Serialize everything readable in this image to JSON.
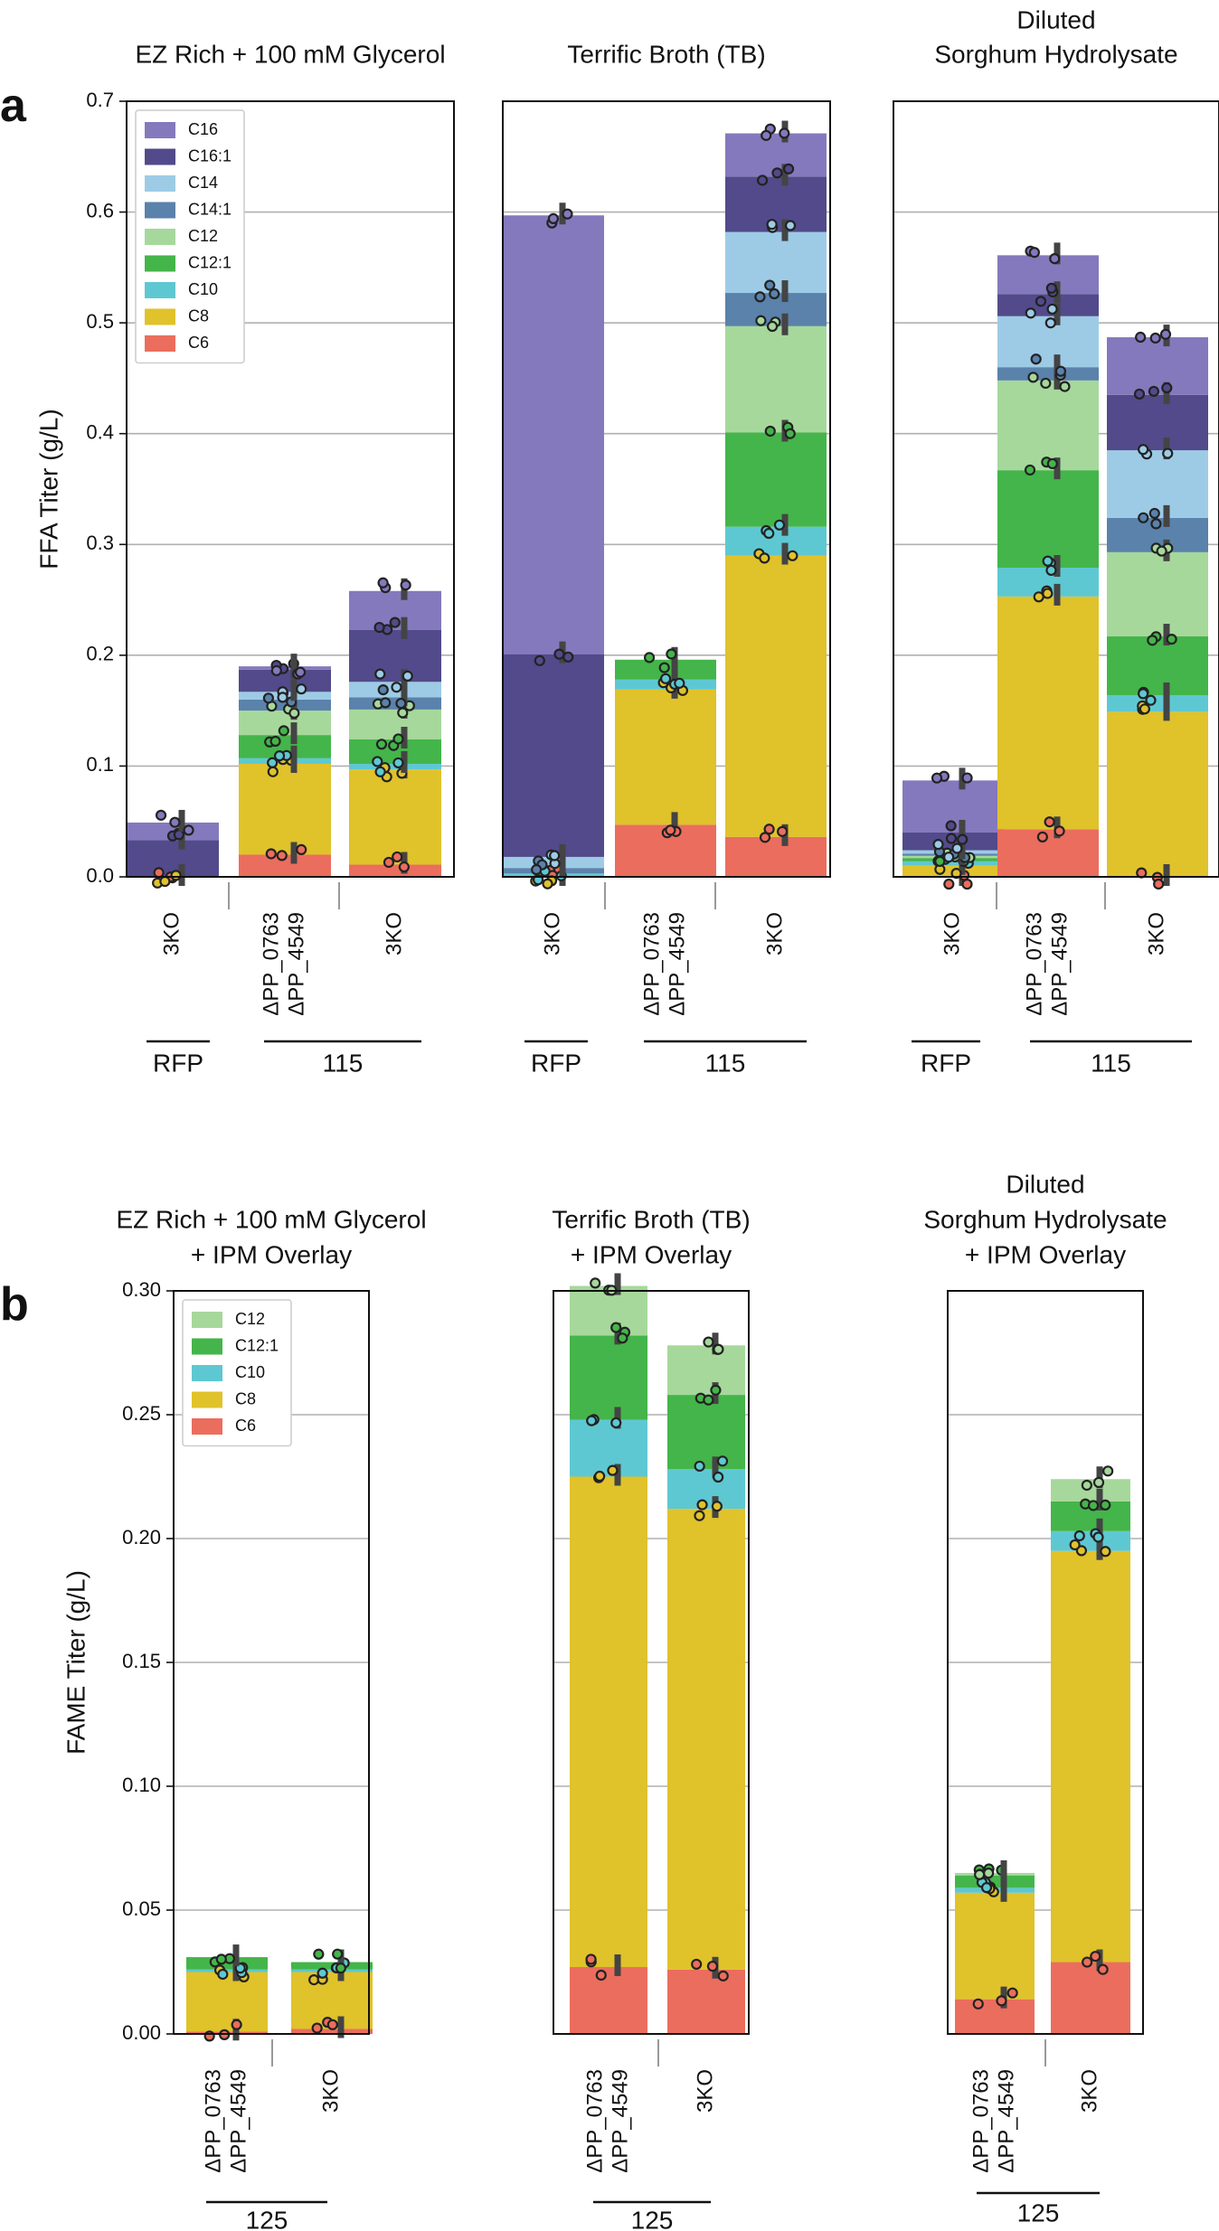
{
  "panel_labels": {
    "a": "a",
    "b": "b"
  },
  "colors": {
    "C16": "#8479bd",
    "C16:1": "#524a8a",
    "C14": "#9dcbe6",
    "C14:1": "#5a82ab",
    "C12": "#a6d89b",
    "C12:1": "#44b54a",
    "C10": "#5ec8d2",
    "C8": "#e0c22b",
    "C6": "#eb6d5d"
  },
  "chart_data": [
    {
      "type": "bar",
      "stacked": true,
      "row": "a",
      "title_lines": [
        "EZ Rich + 100 mM Glycerol"
      ],
      "ylabel": "FFA Titer (g/L)",
      "ylim": [
        0,
        0.7
      ],
      "yticks": [
        "0.0",
        "0.1",
        "0.2",
        "0.3",
        "0.4",
        "0.5",
        "0.6",
        "0.7"
      ],
      "legend_position": "top-left",
      "legend": [
        "C16",
        "C16:1",
        "C14",
        "C14:1",
        "C12",
        "C12:1",
        "C10",
        "C8",
        "C6"
      ],
      "categories": [
        [
          "3KO"
        ],
        [
          "ΔPP_0763",
          "ΔPP_4549"
        ],
        [
          "3KO"
        ]
      ],
      "groups": [
        {
          "label": "RFP",
          "from": 0,
          "to": 0
        },
        {
          "label": "115",
          "from": 1,
          "to": 2
        }
      ],
      "bars": [
        {
          "C6": 0,
          "C8": 0,
          "C10": 0,
          "C12:1": 0,
          "C12": 0,
          "C14:1": 0,
          "C14": 0,
          "C16:1": 0.033,
          "C16": 0.016
        },
        {
          "C6": 0.02,
          "C8": 0.082,
          "C10": 0.005,
          "C12:1": 0.021,
          "C12": 0.022,
          "C14:1": 0.01,
          "C14": 0.007,
          "C16:1": 0.02,
          "C16": 0.003
        },
        {
          "C6": 0.011,
          "C8": 0.086,
          "C10": 0.005,
          "C12:1": 0.022,
          "C12": 0.027,
          "C14:1": 0.011,
          "C14": 0.014,
          "C16:1": 0.047,
          "C16": 0.035
        }
      ]
    },
    {
      "type": "bar",
      "stacked": true,
      "row": "a",
      "title_lines": [
        "Terrific Broth (TB)"
      ],
      "ylim": [
        0,
        0.7
      ],
      "categories": [
        [
          "3KO"
        ],
        [
          "ΔPP_0763",
          "ΔPP_4549"
        ],
        [
          "3KO"
        ]
      ],
      "groups": [
        {
          "label": "RFP",
          "from": 0,
          "to": 0
        },
        {
          "label": "115",
          "from": 1,
          "to": 2
        }
      ],
      "bars": [
        {
          "C6": 0,
          "C8": 0,
          "C10": 0.003,
          "C12:1": 0,
          "C12": 0,
          "C14:1": 0.005,
          "C14": 0.01,
          "C16:1": 0.183,
          "C16": 0.396
        },
        {
          "C6": 0.047,
          "C8": 0.122,
          "C10": 0.009,
          "C12:1": 0.018,
          "C12": 0,
          "C14:1": 0,
          "C14": 0,
          "C16:1": 0,
          "C16": 0
        },
        {
          "C6": 0.036,
          "C8": 0.254,
          "C10": 0.026,
          "C12:1": 0.085,
          "C12": 0.096,
          "C14:1": 0.03,
          "C14": 0.055,
          "C16:1": 0.05,
          "C16": 0.039
        }
      ]
    },
    {
      "type": "bar",
      "stacked": true,
      "row": "a",
      "title_lines": [
        "Diluted",
        "Sorghum Hydrolysate"
      ],
      "ylim": [
        0,
        0.7
      ],
      "categories": [
        [
          "3KO"
        ],
        [
          "ΔPP_0763",
          "ΔPP_4549"
        ],
        [
          "3KO"
        ]
      ],
      "groups": [
        {
          "label": "RFP",
          "from": 0,
          "to": 0
        },
        {
          "label": "115",
          "from": 1,
          "to": 2
        }
      ],
      "bars": [
        {
          "C6": 0,
          "C8": 0.01,
          "C10": 0.004,
          "C12:1": 0.003,
          "C12": 0.002,
          "C14:1": 0.002,
          "C14": 0.003,
          "C16:1": 0.016,
          "C16": 0.047
        },
        {
          "C6": 0.043,
          "C8": 0.21,
          "C10": 0.026,
          "C12:1": 0.088,
          "C12": 0.081,
          "C14:1": 0.012,
          "C14": 0.046,
          "C16:1": 0.02,
          "C16": 0.035
        },
        {
          "C6": 0,
          "C8": 0.149,
          "C10": 0.015,
          "C12:1": 0.053,
          "C12": 0.076,
          "C14:1": 0.031,
          "C14": 0.061,
          "C16:1": 0.05,
          "C16": 0.052
        }
      ]
    },
    {
      "type": "bar",
      "stacked": true,
      "row": "b",
      "title_lines": [
        "EZ Rich + 100 mM Glycerol",
        "+ IPM Overlay"
      ],
      "ylabel": "FAME Titer (g/L)",
      "ylim": [
        0,
        0.3
      ],
      "yticks": [
        "0.00",
        "0.05",
        "0.10",
        "0.15",
        "0.20",
        "0.25",
        "0.30"
      ],
      "legend_position": "top-left",
      "legend": [
        "C12",
        "C12:1",
        "C10",
        "C8",
        "C6"
      ],
      "categories": [
        [
          "ΔPP_0763",
          "ΔPP_4549"
        ],
        [
          "3KO"
        ]
      ],
      "groups": [
        {
          "label": "125",
          "from": 0,
          "to": 1
        }
      ],
      "bars": [
        {
          "C6": 0.001,
          "C8": 0.024,
          "C10": 0.001,
          "C12:1": 0.005,
          "C12": 0
        },
        {
          "C6": 0.002,
          "C8": 0.023,
          "C10": 0.001,
          "C12:1": 0.003,
          "C12": 0
        }
      ]
    },
    {
      "type": "bar",
      "stacked": true,
      "row": "b",
      "title_lines": [
        "Terrific Broth (TB)",
        "+ IPM Overlay"
      ],
      "ylim": [
        0,
        0.3
      ],
      "categories": [
        [
          "ΔPP_0763",
          "ΔPP_4549"
        ],
        [
          "3KO"
        ]
      ],
      "groups": [
        {
          "label": "125",
          "from": 0,
          "to": 1
        }
      ],
      "bars": [
        {
          "C6": 0.027,
          "C8": 0.198,
          "C10": 0.023,
          "C12:1": 0.034,
          "C12": 0.02
        },
        {
          "C6": 0.026,
          "C8": 0.186,
          "C10": 0.016,
          "C12:1": 0.03,
          "C12": 0.02
        }
      ]
    },
    {
      "type": "bar",
      "stacked": true,
      "row": "b",
      "title_lines": [
        "Diluted",
        "Sorghum Hydrolysate",
        "+ IPM Overlay"
      ],
      "ylim": [
        0,
        0.3
      ],
      "categories": [
        [
          "ΔPP_0763",
          "ΔPP_4549"
        ],
        [
          "3KO"
        ]
      ],
      "groups": [
        {
          "label": "125",
          "from": 0,
          "to": 1
        }
      ],
      "bars": [
        {
          "C6": 0.014,
          "C8": 0.043,
          "C10": 0.002,
          "C12:1": 0.005,
          "C12": 0.001
        },
        {
          "C6": 0.029,
          "C8": 0.166,
          "C10": 0.008,
          "C12:1": 0.012,
          "C12": 0.009
        }
      ]
    }
  ]
}
